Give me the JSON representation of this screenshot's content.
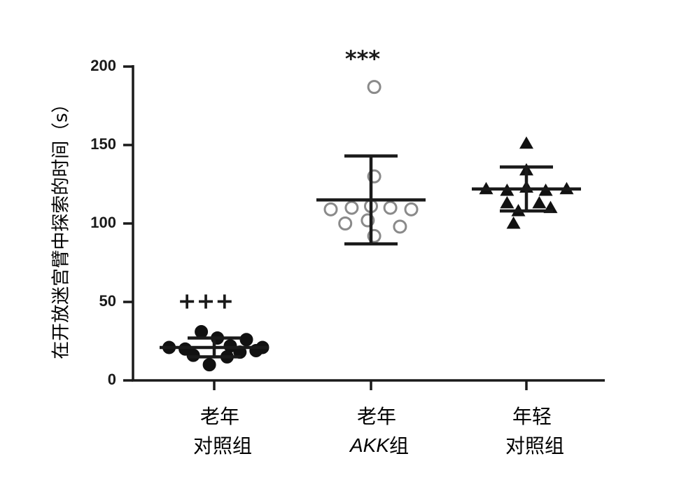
{
  "chart_data": {
    "type": "scatter",
    "ylabel": "在开放迷宫臂中探索的时间（s）",
    "ylim": [
      0,
      200
    ],
    "yticks": [
      0,
      50,
      100,
      150,
      200
    ],
    "groups": [
      {
        "name_line1": "老年",
        "name_line2_prefix": "",
        "name_line2_italic": "",
        "name_line2_suffix": "对照组",
        "marker": "filled-circle",
        "mean": 21,
        "err_upper": 27,
        "err_lower": 15,
        "significance": "+++",
        "points": [
          {
            "x": -0.28,
            "y": 21
          },
          {
            "x": -0.18,
            "y": 20
          },
          {
            "x": -0.08,
            "y": 31
          },
          {
            "x": 0.02,
            "y": 27
          },
          {
            "x": 0.1,
            "y": 22
          },
          {
            "x": 0.2,
            "y": 26
          },
          {
            "x": 0.3,
            "y": 21
          },
          {
            "x": -0.13,
            "y": 16
          },
          {
            "x": -0.03,
            "y": 10
          },
          {
            "x": 0.08,
            "y": 15
          },
          {
            "x": 0.16,
            "y": 18
          },
          {
            "x": 0.26,
            "y": 19
          }
        ]
      },
      {
        "name_line1": "老年",
        "name_line2_prefix": "",
        "name_line2_italic": "AKK",
        "name_line2_suffix": "组",
        "marker": "open-circle",
        "mean": 115,
        "err_upper": 143,
        "err_lower": 87,
        "significance": "***",
        "points": [
          {
            "x": 0.02,
            "y": 187
          },
          {
            "x": 0.02,
            "y": 130
          },
          {
            "x": -0.25,
            "y": 109
          },
          {
            "x": -0.12,
            "y": 110
          },
          {
            "x": 0.0,
            "y": 111
          },
          {
            "x": 0.12,
            "y": 110
          },
          {
            "x": 0.25,
            "y": 109
          },
          {
            "x": -0.16,
            "y": 100
          },
          {
            "x": -0.02,
            "y": 102
          },
          {
            "x": 0.18,
            "y": 98
          },
          {
            "x": 0.02,
            "y": 92
          }
        ]
      },
      {
        "name_line1": "年轻",
        "name_line2_prefix": "",
        "name_line2_italic": "",
        "name_line2_suffix": "对照组",
        "marker": "filled-triangle",
        "mean": 122,
        "err_upper": 136,
        "err_lower": 108,
        "significance": "",
        "points": [
          {
            "x": 0.0,
            "y": 151
          },
          {
            "x": 0.0,
            "y": 134
          },
          {
            "x": -0.25,
            "y": 122
          },
          {
            "x": -0.12,
            "y": 121
          },
          {
            "x": 0.0,
            "y": 123
          },
          {
            "x": 0.12,
            "y": 121
          },
          {
            "x": 0.25,
            "y": 122
          },
          {
            "x": -0.12,
            "y": 113
          },
          {
            "x": 0.08,
            "y": 113
          },
          {
            "x": -0.05,
            "y": 108
          },
          {
            "x": 0.15,
            "y": 110
          },
          {
            "x": -0.08,
            "y": 100
          }
        ]
      }
    ]
  }
}
